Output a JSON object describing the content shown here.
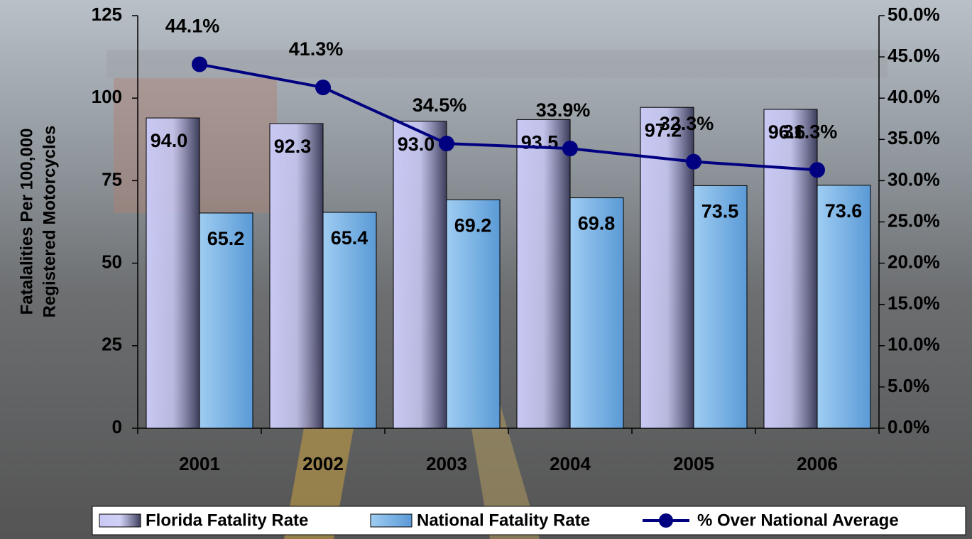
{
  "chart_data": {
    "type": "bar",
    "y_label": [
      "Fatalalities Per 100,000",
      "Registered Motorcycles"
    ],
    "categories": [
      "2001",
      "2002",
      "2003",
      "2004",
      "2005",
      "2006"
    ],
    "series": [
      {
        "name": "Florida Fatality Rate",
        "color": "#c8c8f4",
        "values": [
          94.0,
          92.3,
          93.0,
          93.5,
          97.2,
          96.6
        ],
        "value_labels": [
          "94.0",
          "92.3",
          "93.0",
          "93.5",
          "97.2",
          "96.6"
        ]
      },
      {
        "name": "National Fatality Rate",
        "color": "#9fcdf2",
        "values": [
          65.2,
          65.4,
          69.2,
          69.8,
          73.5,
          73.6
        ],
        "value_labels": [
          "65.2",
          "65.4",
          "69.2",
          "69.8",
          "73.5",
          "73.6"
        ]
      },
      {
        "name": "% Over National Average",
        "type": "line",
        "axis": "y2",
        "color": "#000080",
        "values": [
          44.1,
          41.3,
          34.5,
          33.9,
          32.3,
          31.3
        ],
        "value_labels": [
          "44.1%",
          "41.3%",
          "34.5%",
          "33.9%",
          "32.3%",
          "31.3%"
        ]
      }
    ],
    "ylim": [
      0,
      125
    ],
    "yticks": [
      0,
      25,
      50,
      75,
      100,
      125
    ],
    "y2lim": [
      0,
      50
    ],
    "y2ticks": [
      {
        "value": 0,
        "label": "0.0%"
      },
      {
        "value": 5,
        "label": "5.0%"
      },
      {
        "value": 10,
        "label": "10.0%"
      },
      {
        "value": 15,
        "label": "15.0%"
      },
      {
        "value": 20,
        "label": "20.0%"
      },
      {
        "value": 25,
        "label": "25.0%"
      },
      {
        "value": 30,
        "label": "30.0%"
      },
      {
        "value": 35,
        "label": "35.0%"
      },
      {
        "value": 40,
        "label": "40.0%"
      },
      {
        "value": 45,
        "label": "45.0%"
      },
      {
        "value": 50,
        "label": "50.0%"
      }
    ],
    "grid": false,
    "legend": "bottom"
  }
}
